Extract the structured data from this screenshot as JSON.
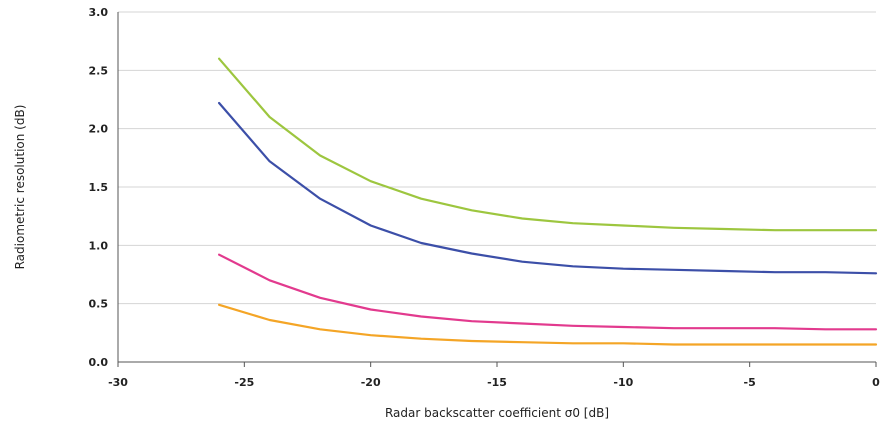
{
  "chart_data": {
    "type": "line",
    "title": "",
    "xlabel": "Radar backscatter coefficient σ0 [dB]",
    "ylabel": "Radiometric resolution (dB)",
    "xlim": [
      -30,
      0
    ],
    "ylim": [
      0,
      3
    ],
    "x_ticks": [
      -30,
      -25,
      -20,
      -15,
      -10,
      -5,
      0
    ],
    "y_ticks": [
      0.0,
      0.5,
      1.0,
      1.5,
      2.0,
      2.5,
      3.0
    ],
    "x_tick_labels": [
      "-30",
      "-25",
      "-20",
      "-15",
      "-10",
      "-5",
      "0"
    ],
    "y_tick_labels": [
      "0.0",
      "0.5",
      "1.0",
      "1.5",
      "2.0",
      "2.5",
      "3.0"
    ],
    "grid": "horizontal",
    "legend": "none",
    "x": [
      -26,
      -24,
      -22,
      -20,
      -18,
      -16,
      -14,
      -12,
      -10,
      -8,
      -6,
      -4,
      -2,
      0
    ],
    "series": [
      {
        "color": "#9dc63f",
        "values": [
          2.6,
          2.1,
          1.77,
          1.55,
          1.4,
          1.3,
          1.23,
          1.19,
          1.17,
          1.15,
          1.14,
          1.13,
          1.13,
          1.13
        ]
      },
      {
        "color": "#3c4fa8",
        "values": [
          2.22,
          1.72,
          1.4,
          1.17,
          1.02,
          0.93,
          0.86,
          0.82,
          0.8,
          0.79,
          0.78,
          0.77,
          0.77,
          0.76
        ]
      },
      {
        "color": "#e23a8e",
        "values": [
          0.92,
          0.7,
          0.55,
          0.45,
          0.39,
          0.35,
          0.33,
          0.31,
          0.3,
          0.29,
          0.29,
          0.29,
          0.28,
          0.28
        ]
      },
      {
        "color": "#f4a526",
        "values": [
          0.49,
          0.36,
          0.28,
          0.23,
          0.2,
          0.18,
          0.17,
          0.16,
          0.16,
          0.15,
          0.15,
          0.15,
          0.15,
          0.15
        ]
      }
    ]
  }
}
